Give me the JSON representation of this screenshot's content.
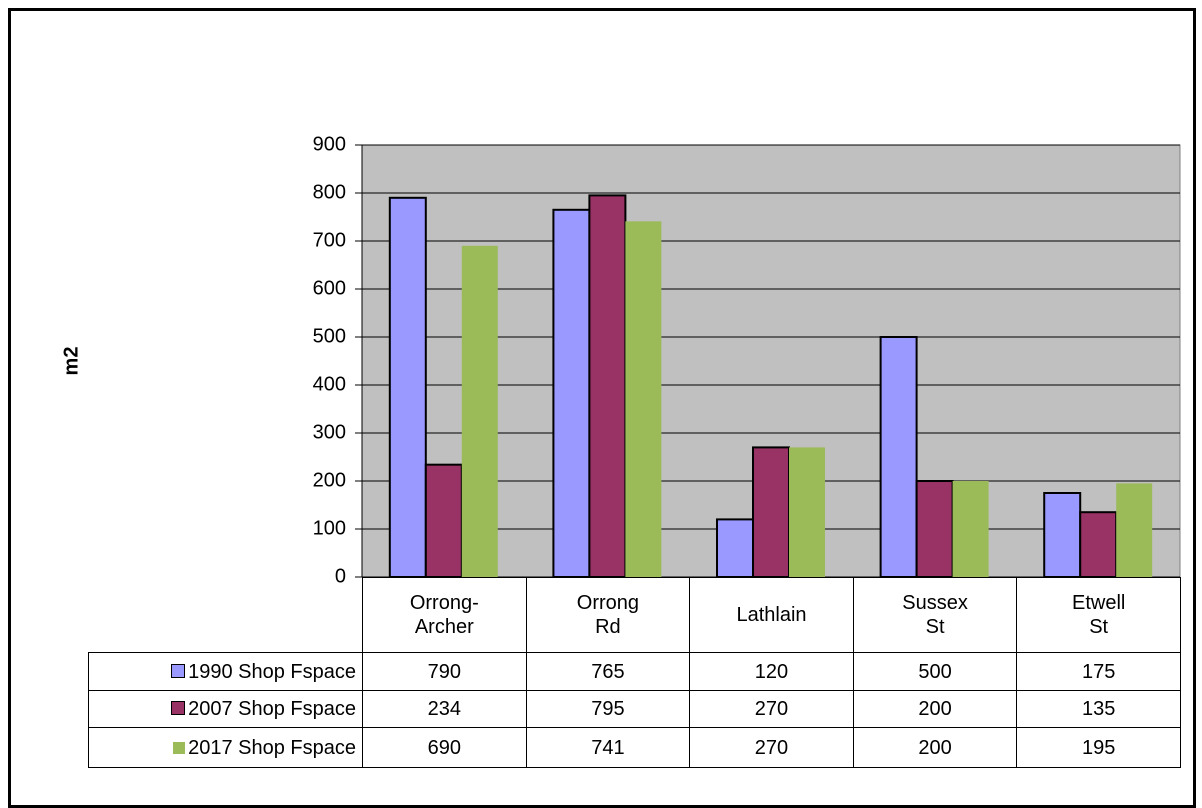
{
  "chart_data": {
    "type": "bar",
    "ylabel": "m2",
    "categories": [
      "Orrong-\nArcher",
      "Orrong\nRd",
      "Lathlain",
      "Sussex\nSt",
      "Etwell\nSt"
    ],
    "series": [
      {
        "name": "1990 Shop Fspace",
        "color": "#9999ff",
        "values": [
          790,
          765,
          120,
          500,
          175
        ]
      },
      {
        "name": "2007 Shop Fspace",
        "color": "#993366",
        "values": [
          234,
          795,
          270,
          200,
          135
        ]
      },
      {
        "name": "2017 Shop Fspace",
        "color": "#9bbb59",
        "values": [
          690,
          741,
          270,
          200,
          195
        ]
      }
    ],
    "ylim": [
      0,
      900
    ],
    "yticks": [
      0,
      100,
      200,
      300,
      400,
      500,
      600,
      700,
      800,
      900
    ],
    "grid": true
  }
}
